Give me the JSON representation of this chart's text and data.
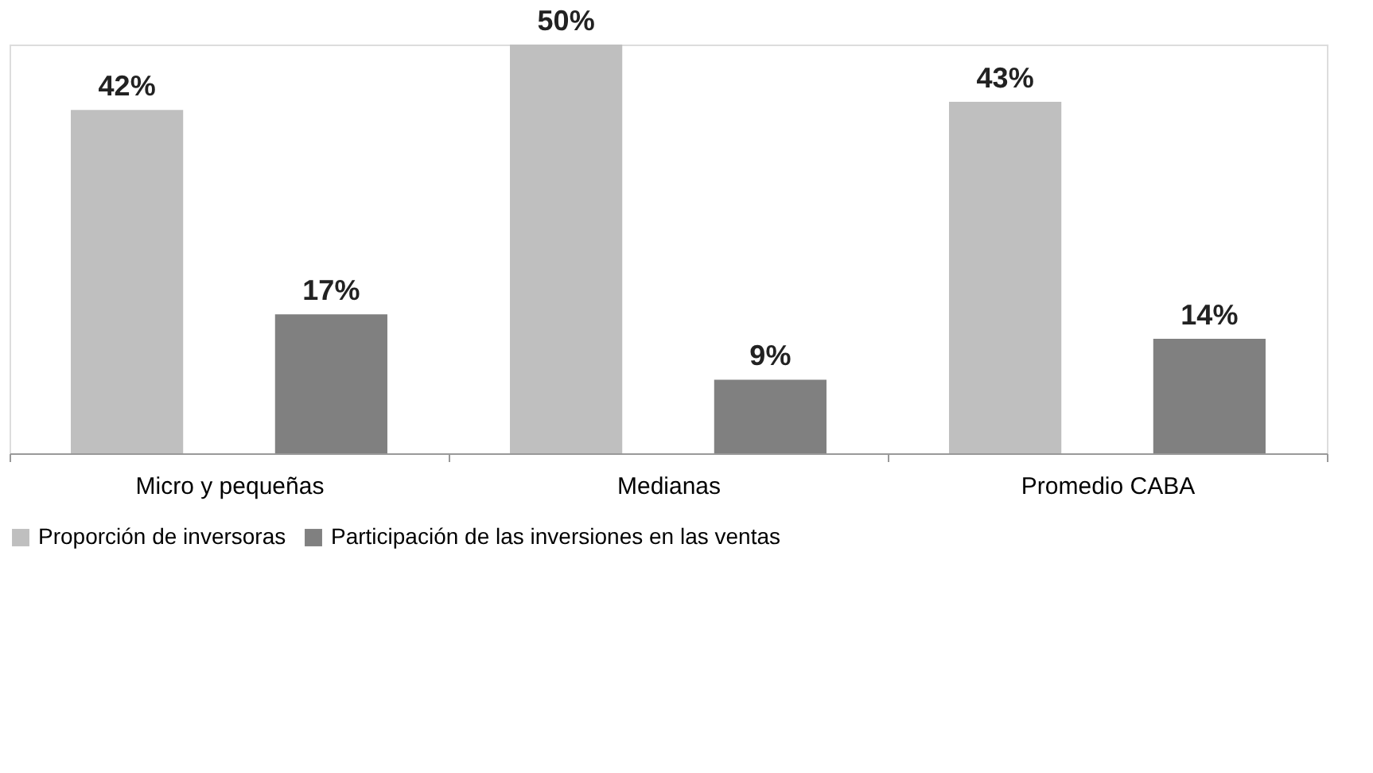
{
  "chart_data": {
    "type": "bar",
    "categories": [
      "Micro y pequeñas",
      "Medianas",
      "Promedio CABA"
    ],
    "series": [
      {
        "name": "Proporción de inversoras",
        "color": "#bfbfbf",
        "values": [
          42,
          50,
          43
        ],
        "value_labels": [
          "42%",
          "50%",
          "43%"
        ]
      },
      {
        "name": "Participación de las inversiones en las ventas",
        "color": "#808080",
        "values": [
          17,
          9,
          14
        ],
        "value_labels": [
          "17%",
          "9%",
          "14%"
        ]
      }
    ],
    "legend": "bottom",
    "grid": false
  }
}
